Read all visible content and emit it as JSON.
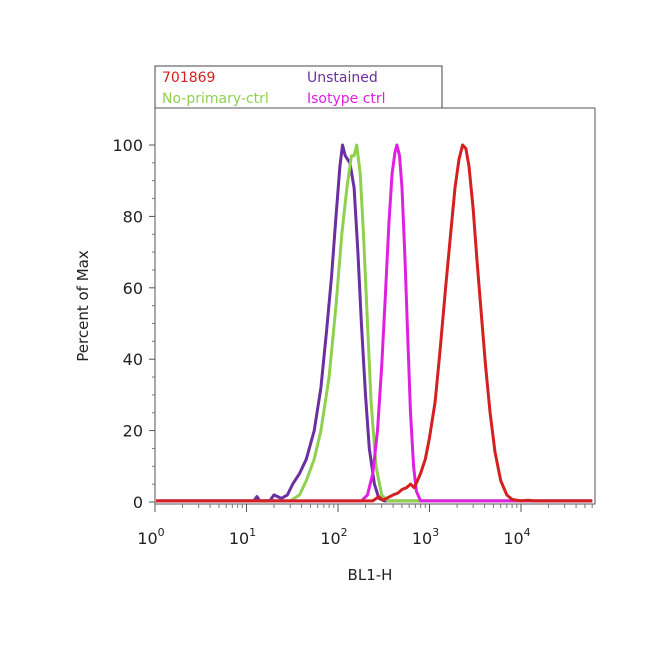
{
  "chart_data": {
    "type": "line",
    "xlabel": "BL1-H",
    "ylabel": "Percent of Max",
    "x_scale": "log",
    "xlim": [
      1,
      60000
    ],
    "ylim": [
      0,
      110
    ],
    "y_ticks": [
      "0",
      "20",
      "40",
      "60",
      "80",
      "100"
    ],
    "y_tick_values": [
      0,
      20,
      40,
      60,
      80,
      100
    ],
    "x_ticks": [
      {
        "value": 1,
        "base": "10",
        "exp": "0"
      },
      {
        "value": 10,
        "base": "10",
        "exp": "1"
      },
      {
        "value": 100,
        "base": "10",
        "exp": "2"
      },
      {
        "value": 1000,
        "base": "10",
        "exp": "3"
      },
      {
        "value": 10000,
        "base": "10",
        "exp": "4"
      }
    ],
    "grid": false,
    "legend_position": "top-left",
    "series": [
      {
        "name": "Unstained",
        "color": "#6a2fa0",
        "points": [
          [
            1,
            0.3
          ],
          [
            12,
            0.3
          ],
          [
            13,
            1.5
          ],
          [
            14,
            0.3
          ],
          [
            18,
            0.4
          ],
          [
            20,
            2
          ],
          [
            24,
            1
          ],
          [
            28,
            2
          ],
          [
            32,
            5
          ],
          [
            38,
            8
          ],
          [
            45,
            12
          ],
          [
            55,
            20
          ],
          [
            65,
            32
          ],
          [
            75,
            48
          ],
          [
            85,
            63
          ],
          [
            95,
            80
          ],
          [
            105,
            94
          ],
          [
            112,
            100
          ],
          [
            120,
            97
          ],
          [
            135,
            95
          ],
          [
            150,
            88
          ],
          [
            165,
            70
          ],
          [
            180,
            50
          ],
          [
            200,
            30
          ],
          [
            220,
            15
          ],
          [
            250,
            5
          ],
          [
            280,
            1
          ],
          [
            320,
            0.3
          ],
          [
            60000,
            0.3
          ]
        ]
      },
      {
        "name": "No-primary-ctrl",
        "color": "#8fd14f",
        "points": [
          [
            1,
            0.3
          ],
          [
            30,
            0.3
          ],
          [
            38,
            2
          ],
          [
            45,
            6
          ],
          [
            55,
            12
          ],
          [
            65,
            20
          ],
          [
            80,
            35
          ],
          [
            95,
            55
          ],
          [
            110,
            75
          ],
          [
            125,
            88
          ],
          [
            140,
            97
          ],
          [
            150,
            97
          ],
          [
            160,
            100
          ],
          [
            175,
            92
          ],
          [
            190,
            75
          ],
          [
            210,
            50
          ],
          [
            230,
            28
          ],
          [
            260,
            10
          ],
          [
            300,
            2
          ],
          [
            350,
            0.3
          ],
          [
            60000,
            0.3
          ]
        ]
      },
      {
        "name": "Isotype ctrl",
        "color": "#e020e0",
        "points": [
          [
            1,
            0.3
          ],
          [
            180,
            0.3
          ],
          [
            210,
            2
          ],
          [
            240,
            8
          ],
          [
            270,
            20
          ],
          [
            300,
            38
          ],
          [
            330,
            58
          ],
          [
            360,
            78
          ],
          [
            390,
            92
          ],
          [
            420,
            98
          ],
          [
            440,
            100
          ],
          [
            470,
            97
          ],
          [
            500,
            88
          ],
          [
            540,
            68
          ],
          [
            580,
            45
          ],
          [
            620,
            25
          ],
          [
            670,
            10
          ],
          [
            720,
            3
          ],
          [
            800,
            0.3
          ],
          [
            60000,
            0.3
          ]
        ]
      },
      {
        "name": "701869",
        "color": "#d42020",
        "points": [
          [
            1,
            0.3
          ],
          [
            240,
            0.3
          ],
          [
            280,
            1.5
          ],
          [
            310,
            0.5
          ],
          [
            350,
            1.2
          ],
          [
            400,
            2
          ],
          [
            450,
            2.5
          ],
          [
            500,
            3.5
          ],
          [
            560,
            4
          ],
          [
            620,
            5
          ],
          [
            680,
            4
          ],
          [
            740,
            6
          ],
          [
            800,
            8
          ],
          [
            900,
            12
          ],
          [
            1000,
            18
          ],
          [
            1150,
            28
          ],
          [
            1300,
            42
          ],
          [
            1500,
            60
          ],
          [
            1700,
            75
          ],
          [
            1900,
            88
          ],
          [
            2100,
            96
          ],
          [
            2300,
            100
          ],
          [
            2500,
            99
          ],
          [
            2700,
            94
          ],
          [
            3000,
            82
          ],
          [
            3300,
            68
          ],
          [
            3700,
            52
          ],
          [
            4100,
            38
          ],
          [
            4600,
            25
          ],
          [
            5200,
            14
          ],
          [
            6000,
            6
          ],
          [
            7000,
            2
          ],
          [
            8000,
            0.7
          ],
          [
            10000,
            0.3
          ],
          [
            12000,
            0.5
          ],
          [
            14000,
            0.3
          ],
          [
            60000,
            0.3
          ]
        ]
      }
    ]
  },
  "legend": {
    "items": [
      {
        "label": "701869",
        "color": "#d42020"
      },
      {
        "label": "Unstained",
        "color": "#6a2fa0"
      },
      {
        "label": "No-primary-ctrl",
        "color": "#8fd14f"
      },
      {
        "label": "Isotype ctrl",
        "color": "#e020e0"
      }
    ]
  }
}
